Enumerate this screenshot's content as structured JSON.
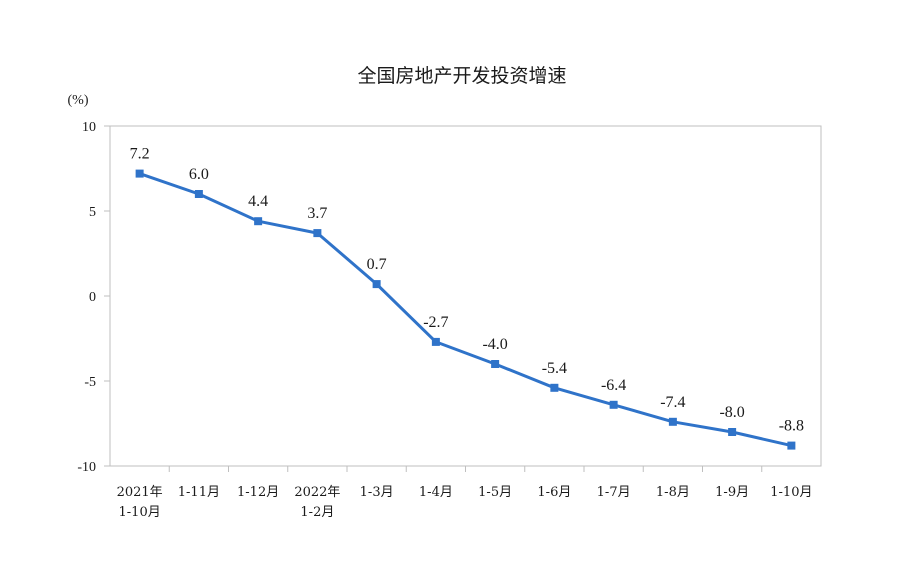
{
  "colors": {
    "series": "#2f73c9",
    "frame": "#bfbfbf"
  },
  "chart_data": {
    "type": "line",
    "title": "全国房地产开发投资增速",
    "ylabel": "(%)",
    "xlabel": "",
    "ylim": [
      -10,
      10
    ],
    "yticks": [
      10,
      5,
      0,
      -5,
      -10
    ],
    "grid": false,
    "categories": [
      [
        "2021年",
        "1-10月"
      ],
      [
        "1-11月"
      ],
      [
        "1-12月"
      ],
      [
        "2022年",
        "1-2月"
      ],
      [
        "1-3月"
      ],
      [
        "1-4月"
      ],
      [
        "1-5月"
      ],
      [
        "1-6月"
      ],
      [
        "1-7月"
      ],
      [
        "1-8月"
      ],
      [
        "1-9月"
      ],
      [
        "1-10月"
      ]
    ],
    "series": [
      {
        "values": [
          7.2,
          6.0,
          4.4,
          3.7,
          0.7,
          -2.7,
          -4.0,
          -5.4,
          -6.4,
          -7.4,
          -8.0,
          -8.8
        ],
        "labels": [
          "7.2",
          "6.0",
          "4.4",
          "3.7",
          "0.7",
          "-2.7",
          "-4.0",
          "-5.4",
          "-6.4",
          "-7.4",
          "-8.0",
          "-8.8"
        ]
      }
    ]
  }
}
